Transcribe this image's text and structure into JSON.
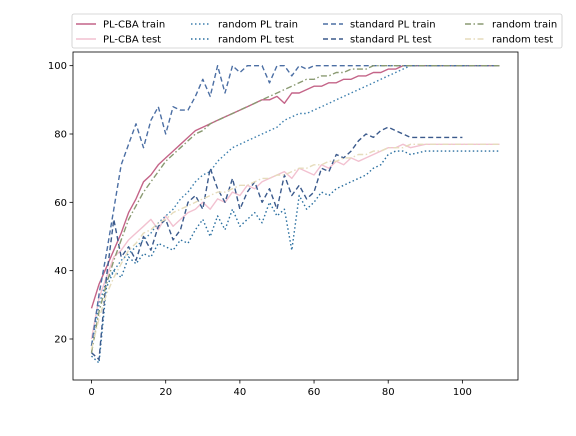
{
  "chart_data": {
    "type": "line",
    "title": "",
    "xlabel": "",
    "ylabel": "",
    "xlim": [
      -5,
      115
    ],
    "ylim": [
      8,
      104
    ],
    "grid": false,
    "legend_location": "top",
    "x_ticks": [
      0,
      20,
      40,
      60,
      80,
      100
    ],
    "y_ticks": [
      20,
      40,
      60,
      80,
      100
    ],
    "x_tick_labels": [
      "0",
      "20",
      "40",
      "60",
      "80",
      "100"
    ],
    "y_tick_labels": [
      "20",
      "40",
      "60",
      "80",
      "100"
    ],
    "series": [
      {
        "name": "PL-CBA train",
        "color": "#c46488",
        "dash": "solid",
        "x": [
          0,
          2,
          4,
          6,
          8,
          10,
          12,
          14,
          16,
          18,
          20,
          22,
          24,
          26,
          28,
          30,
          32,
          34,
          36,
          38,
          40,
          42,
          44,
          46,
          48,
          50,
          52,
          54,
          56,
          58,
          60,
          62,
          64,
          66,
          68,
          70,
          72,
          74,
          76,
          78,
          80,
          82,
          84,
          90,
          100,
          110
        ],
        "y": [
          29,
          36,
          41,
          46,
          51,
          57,
          61,
          66,
          68,
          71,
          73,
          75,
          77,
          79,
          81,
          82,
          83,
          84,
          85,
          86,
          87,
          88,
          89,
          90,
          90,
          91,
          89,
          92,
          92,
          93,
          94,
          94,
          95,
          95,
          96,
          96,
          97,
          97,
          98,
          98,
          99,
          99,
          100,
          100,
          100,
          100
        ]
      },
      {
        "name": "PL-CBA test",
        "color": "#f2c1d0",
        "dash": "solid",
        "x": [
          0,
          2,
          4,
          6,
          8,
          10,
          12,
          14,
          16,
          18,
          20,
          22,
          24,
          26,
          28,
          30,
          32,
          34,
          36,
          38,
          40,
          42,
          44,
          46,
          48,
          50,
          52,
          54,
          56,
          58,
          60,
          62,
          64,
          66,
          68,
          70,
          72,
          74,
          76,
          78,
          80,
          82,
          84,
          86,
          90,
          95,
          100,
          105,
          110
        ],
        "y": [
          20,
          32,
          38,
          44,
          46,
          49,
          51,
          53,
          55,
          52,
          56,
          53,
          55,
          57,
          58,
          60,
          58,
          61,
          60,
          63,
          62,
          65,
          64,
          66,
          67,
          68,
          69,
          67,
          70,
          69,
          68,
          71,
          70,
          72,
          71,
          73,
          72,
          73,
          74,
          75,
          76,
          76,
          77,
          76,
          77,
          77,
          77,
          77,
          77
        ]
      },
      {
        "name": "random PL train",
        "color": "#3d7fae",
        "dash": "dotted",
        "x": [
          0,
          2,
          4,
          6,
          8,
          10,
          12,
          14,
          16,
          18,
          20,
          22,
          24,
          26,
          28,
          30,
          32,
          34,
          36,
          38,
          40,
          42,
          44,
          46,
          48,
          50,
          52,
          54,
          56,
          58,
          60,
          62,
          64,
          66,
          68,
          70,
          72,
          74,
          76,
          78,
          80,
          82,
          84,
          86,
          90,
          95,
          100,
          105,
          110
        ],
        "y": [
          18,
          30,
          37,
          40,
          43,
          45,
          47,
          49,
          51,
          54,
          56,
          58,
          61,
          63,
          66,
          68,
          69,
          72,
          74,
          76,
          77,
          78,
          79,
          80,
          81,
          82,
          84,
          85,
          86,
          86,
          87,
          88,
          89,
          90,
          91,
          92,
          93,
          94,
          95,
          96,
          97,
          98,
          99,
          100,
          100,
          100,
          100,
          100,
          100
        ]
      },
      {
        "name": "random PL test",
        "color": "#2a6fa0",
        "dash": "dotted",
        "x": [
          0,
          2,
          4,
          6,
          8,
          10,
          12,
          14,
          16,
          18,
          20,
          22,
          24,
          26,
          28,
          30,
          32,
          34,
          36,
          38,
          40,
          42,
          44,
          46,
          48,
          50,
          52,
          54,
          56,
          58,
          60,
          62,
          64,
          66,
          68,
          70,
          72,
          74,
          76,
          78,
          80,
          82,
          84,
          86,
          90,
          95,
          100,
          105,
          110
        ],
        "y": [
          15,
          13,
          35,
          40,
          38,
          44,
          42,
          45,
          44,
          48,
          47,
          46,
          49,
          48,
          52,
          55,
          50,
          56,
          52,
          58,
          53,
          55,
          57,
          54,
          60,
          56,
          58,
          46,
          62,
          58,
          60,
          63,
          62,
          64,
          65,
          66,
          67,
          68,
          70,
          71,
          74,
          75,
          75,
          74,
          75,
          75,
          75,
          75,
          75
        ]
      },
      {
        "name": "standard PL train",
        "color": "#4c6fa4",
        "dash": "dashed",
        "x": [
          0,
          2,
          4,
          6,
          8,
          10,
          12,
          14,
          16,
          18,
          20,
          22,
          24,
          26,
          28,
          30,
          32,
          34,
          36,
          38,
          40,
          42,
          44,
          46,
          48,
          50,
          52,
          54,
          56,
          58,
          60,
          62,
          64,
          66,
          68,
          70,
          72,
          74,
          76,
          78,
          80,
          82,
          84,
          86,
          88,
          90,
          95,
          100,
          105,
          110
        ],
        "y": [
          18,
          33,
          45,
          58,
          71,
          77,
          83,
          76,
          84,
          88,
          80,
          88,
          87,
          87,
          91,
          96,
          91,
          100,
          92,
          100,
          98,
          100,
          100,
          100,
          95,
          100,
          100,
          97,
          100,
          99,
          100,
          100,
          100,
          100,
          100,
          100,
          100,
          100,
          100,
          100,
          100,
          100,
          100,
          100,
          100,
          100,
          100,
          100,
          100,
          100
        ]
      },
      {
        "name": "standard PL test",
        "color": "#3b5a8c",
        "dash": "dashed",
        "x": [
          0,
          2,
          4,
          6,
          8,
          10,
          12,
          14,
          16,
          18,
          20,
          22,
          24,
          26,
          28,
          30,
          32,
          34,
          36,
          38,
          40,
          42,
          44,
          46,
          48,
          50,
          52,
          54,
          56,
          58,
          60,
          62,
          64,
          66,
          68,
          70,
          72,
          74,
          76,
          78,
          80,
          82,
          84,
          86,
          88,
          90,
          95,
          100
        ],
        "y": [
          16,
          14,
          38,
          55,
          44,
          47,
          43,
          50,
          46,
          53,
          55,
          49,
          52,
          60,
          62,
          58,
          70,
          64,
          60,
          67,
          58,
          63,
          66,
          60,
          64,
          58,
          68,
          62,
          65,
          61,
          63,
          70,
          69,
          74,
          73,
          75,
          78,
          80,
          79,
          81,
          82,
          81,
          80,
          79,
          79,
          79,
          79,
          79
        ]
      },
      {
        "name": "random train",
        "color": "#8a9a72",
        "dash": "dashdot",
        "x": [
          0,
          2,
          4,
          6,
          8,
          10,
          12,
          14,
          16,
          18,
          20,
          22,
          24,
          26,
          28,
          30,
          32,
          34,
          36,
          38,
          40,
          42,
          44,
          46,
          48,
          50,
          52,
          54,
          56,
          58,
          60,
          62,
          64,
          66,
          68,
          70,
          72,
          74,
          76,
          78,
          80,
          82,
          84,
          86,
          90,
          95,
          100,
          105,
          110
        ],
        "y": [
          16,
          28,
          36,
          43,
          49,
          55,
          59,
          63,
          66,
          69,
          72,
          74,
          76,
          78,
          80,
          81,
          83,
          84,
          85,
          86,
          87,
          88,
          89,
          90,
          91,
          92,
          93,
          94,
          95,
          96,
          96,
          97,
          97,
          98,
          98,
          99,
          99,
          99,
          100,
          100,
          100,
          100,
          100,
          100,
          100,
          100,
          100,
          100,
          100
        ]
      },
      {
        "name": "random test",
        "color": "#e6dcbc",
        "dash": "dashdot",
        "x": [
          0,
          2,
          4,
          6,
          8,
          10,
          12,
          14,
          16,
          18,
          20,
          22,
          24,
          26,
          28,
          30,
          32,
          34,
          36,
          38,
          40,
          42,
          44,
          46,
          48,
          50,
          52,
          54,
          56,
          58,
          60,
          62,
          64,
          66,
          68,
          70,
          72,
          74,
          76,
          78,
          80,
          82,
          84,
          86,
          90,
          95,
          100,
          105,
          110
        ],
        "y": [
          17,
          26,
          33,
          38,
          42,
          46,
          48,
          51,
          52,
          54,
          55,
          57,
          58,
          59,
          60,
          61,
          62,
          63,
          63,
          64,
          65,
          65,
          66,
          67,
          67,
          68,
          68,
          69,
          70,
          70,
          71,
          71,
          72,
          72,
          73,
          73,
          74,
          74,
          75,
          75,
          76,
          76,
          76,
          77,
          77,
          77,
          77,
          77,
          77
        ]
      }
    ]
  }
}
